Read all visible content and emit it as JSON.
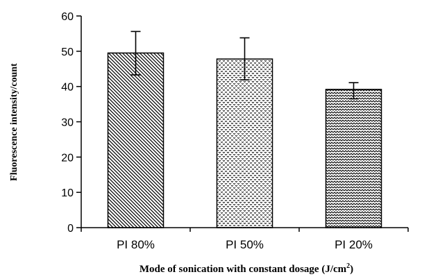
{
  "chart_data": {
    "type": "bar",
    "categories": [
      "PI 80%",
      "PI 50%",
      "PI 20%"
    ],
    "values": [
      49.5,
      47.8,
      39.2
    ],
    "error_low": [
      43.3,
      41.9,
      36.5
    ],
    "error_high": [
      55.6,
      53.8,
      41.1
    ],
    "patterns": [
      "diagonal-hatch",
      "dot-stipple",
      "zigzag"
    ],
    "xlabel": "Mode of sonication with constant dosage (J/cm",
    "xlabel_superscript": "2",
    "xlabel_suffix": ")",
    "ylabel": "Fluorescence intensity/count",
    "ylim": [
      0,
      60
    ],
    "yticks": [
      "0",
      "10",
      "20",
      "30",
      "40",
      "50",
      "60"
    ],
    "grid": false,
    "legend": "none"
  }
}
